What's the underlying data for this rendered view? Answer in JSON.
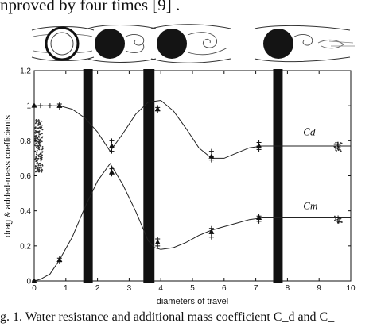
{
  "page": {
    "top_text": "nproved by four times [9] .",
    "caption": "g. 1.  Water resistance and additional mass coefficient C_d and C_"
  },
  "colors": {
    "ink": "#111111",
    "paper": "#ffffff"
  },
  "flow_states": [
    {
      "name": "hollow-cylinder"
    },
    {
      "name": "symmetric-wake"
    },
    {
      "name": "developing-vortex"
    },
    {
      "name": "shed-vortex"
    }
  ],
  "chart_data": {
    "type": "line",
    "title": "",
    "xlabel": "diameters of travel",
    "ylabel": "drag & added-mass coefficients",
    "xlim": [
      0,
      10
    ],
    "ylim": [
      0,
      1.2
    ],
    "xticks": [
      "0",
      "1",
      "2",
      "3",
      "4",
      "5",
      "6",
      "7",
      "8",
      "9",
      "10"
    ],
    "yticks": [
      "0",
      "0.2",
      "0.4",
      "0.6",
      "0.8",
      "1",
      "1.2"
    ],
    "grid": false,
    "series": [
      {
        "name": "C̄d",
        "x": [
          0,
          0.2,
          0.5,
          0.8,
          1.2,
          1.6,
          2.0,
          2.4,
          2.8,
          3.2,
          3.6,
          4.0,
          4.4,
          4.8,
          5.2,
          5.6,
          6.0,
          6.4,
          6.8,
          7.2,
          7.6,
          8.2,
          9.0,
          10.0
        ],
        "values": [
          1.0,
          1.0,
          1.0,
          1.0,
          0.98,
          0.93,
          0.85,
          0.74,
          0.84,
          0.95,
          1.02,
          1.03,
          0.97,
          0.87,
          0.76,
          0.7,
          0.7,
          0.73,
          0.76,
          0.77,
          0.77,
          0.77,
          0.77,
          0.77
        ],
        "label_at": [
          8.5,
          0.83
        ]
      },
      {
        "name": "C̄m",
        "x": [
          0,
          0.2,
          0.5,
          0.8,
          1.2,
          1.6,
          2.0,
          2.4,
          2.8,
          3.2,
          3.6,
          3.8,
          4.0,
          4.4,
          4.8,
          5.2,
          5.6,
          6.0,
          6.4,
          6.8,
          7.2,
          7.6,
          8.2,
          9.0,
          10.0
        ],
        "values": [
          0.0,
          0.01,
          0.04,
          0.12,
          0.25,
          0.42,
          0.57,
          0.67,
          0.55,
          0.4,
          0.23,
          0.19,
          0.18,
          0.19,
          0.22,
          0.26,
          0.29,
          0.31,
          0.33,
          0.35,
          0.36,
          0.36,
          0.36,
          0.36,
          0.36
        ],
        "label_at": [
          8.5,
          0.41
        ]
      }
    ],
    "markers": [
      {
        "x": 0,
        "y": 1.0
      },
      {
        "x": 0.2,
        "y": 1.0
      },
      {
        "x": 0.5,
        "y": 1.0
      },
      {
        "x": 0.8,
        "y": 1.01
      },
      {
        "x": 0.8,
        "y": 0.99
      },
      {
        "x": 2.45,
        "y": 0.8
      },
      {
        "x": 2.45,
        "y": 0.74
      },
      {
        "x": 3.9,
        "y": 0.99
      },
      {
        "x": 3.9,
        "y": 0.97
      },
      {
        "x": 5.6,
        "y": 0.74
      },
      {
        "x": 5.6,
        "y": 0.71
      },
      {
        "x": 5.6,
        "y": 0.69
      },
      {
        "x": 7.1,
        "y": 0.79
      },
      {
        "x": 7.1,
        "y": 0.77
      },
      {
        "x": 7.1,
        "y": 0.75
      },
      {
        "x": 9.6,
        "y": 0.78
      },
      {
        "x": 9.6,
        "y": 0.76
      },
      {
        "x": 0,
        "y": 0.0
      },
      {
        "x": 0.8,
        "y": 0.11
      },
      {
        "x": 0.8,
        "y": 0.13
      },
      {
        "x": 2.45,
        "y": 0.64
      },
      {
        "x": 2.45,
        "y": 0.61
      },
      {
        "x": 3.9,
        "y": 0.24
      },
      {
        "x": 3.9,
        "y": 0.2
      },
      {
        "x": 5.6,
        "y": 0.3
      },
      {
        "x": 5.6,
        "y": 0.27
      },
      {
        "x": 5.6,
        "y": 0.25
      },
      {
        "x": 7.1,
        "y": 0.37
      },
      {
        "x": 7.1,
        "y": 0.34
      },
      {
        "x": 9.6,
        "y": 0.36
      },
      {
        "x": 9.6,
        "y": 0.34
      }
    ],
    "scatter_clusters": [
      {
        "x": 0.15,
        "y_range": [
          0.62,
          0.92
        ]
      },
      {
        "x": 9.6,
        "y_range": [
          0.74,
          0.79
        ]
      },
      {
        "x": 9.6,
        "y_range": [
          0.33,
          0.37
        ]
      }
    ],
    "occlusion_bands": [
      {
        "x_range": [
          1.55,
          1.85
        ]
      },
      {
        "x_range": [
          3.45,
          3.8
        ]
      },
      {
        "x_range": [
          7.55,
          7.85
        ]
      }
    ]
  }
}
